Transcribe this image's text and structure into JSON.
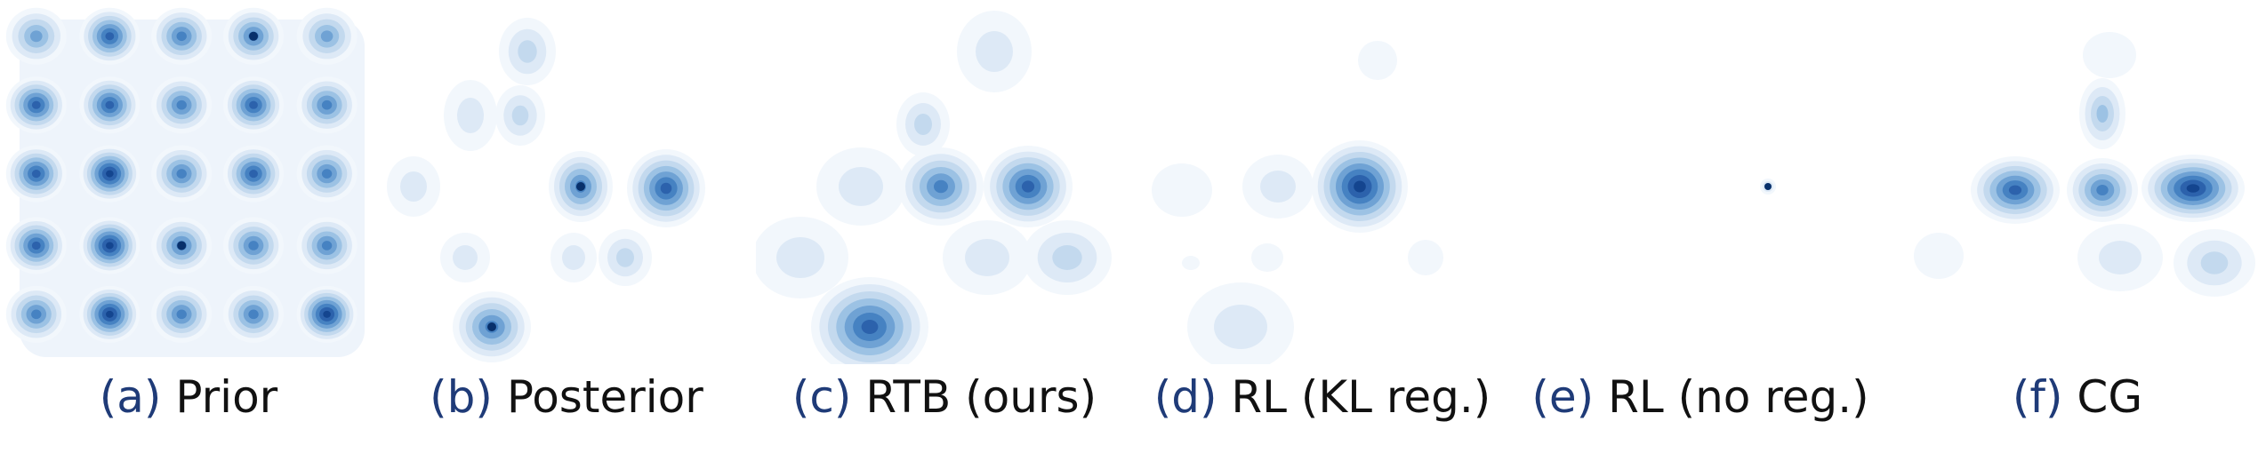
{
  "colors": {
    "low": "#eaf2fb",
    "mid": "#8fbbe0",
    "high": "#2c5fa8",
    "peak": "#0b3d8c",
    "tag": "#1f3b78"
  },
  "panels": [
    {
      "tag": "(a)",
      "label": "Prior"
    },
    {
      "tag": "(b)",
      "label": "Posterior"
    },
    {
      "tag": "(c)",
      "label": "RTB (ours)"
    },
    {
      "tag": "(d)",
      "label": "RL (KL reg.)"
    },
    {
      "tag": "(e)",
      "label": "RL (no reg.)"
    },
    {
      "tag": "(f)",
      "label": "CG"
    }
  ]
}
